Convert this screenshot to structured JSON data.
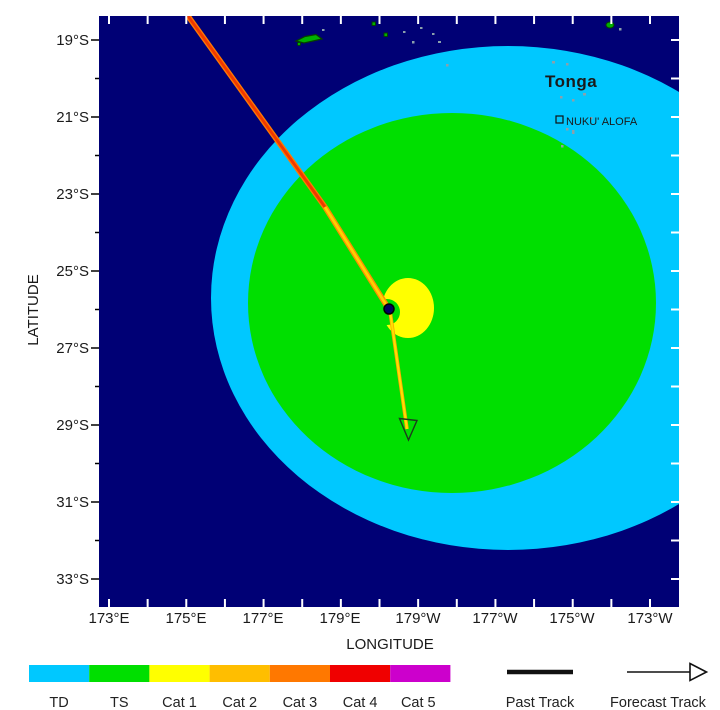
{
  "axes": {
    "x_label": "LONGITUDE",
    "y_label": "LATITUDE",
    "x_ticks": [
      "173°E",
      "175°E",
      "177°E",
      "179°E",
      "179°W",
      "177°W",
      "175°W",
      "173°W"
    ],
    "y_ticks": [
      "19°S",
      "21°S",
      "23°S",
      "25°S",
      "27°S",
      "29°S",
      "31°S",
      "33°S"
    ]
  },
  "labels": {
    "region": "Tonga",
    "city": "NUKU' ALOFA"
  },
  "legend": {
    "intensity_scale": [
      {
        "label": "TD",
        "color": "#00c8ff"
      },
      {
        "label": "TS",
        "color": "#00df00"
      },
      {
        "label": "Cat 1",
        "color": "#ffff00"
      },
      {
        "label": "Cat 2",
        "color": "#ffbe00"
      },
      {
        "label": "Cat 3",
        "color": "#ff7800"
      },
      {
        "label": "Cat 4",
        "color": "#f00000"
      },
      {
        "label": "Cat 5",
        "color": "#cc00cc"
      }
    ],
    "past_track_label": "Past Track",
    "forecast_track_label": "Forecast Track"
  },
  "map_colors": {
    "ocean": "#000075",
    "td_wind_zone": "#00c8ff",
    "ts_wind_zone": "#00df00",
    "cat1_wind_zone": "#ffff00",
    "past_track_early": "#f03800",
    "past_track_late": "#ffd000",
    "forecast_track": "#ffe000",
    "storm_marker": "#000060",
    "region_label_color": "#4b4b00",
    "city_label_color": "#111111"
  },
  "storm": {
    "current_position": {
      "lon": "179.7W",
      "lat": "26.0S"
    },
    "past_track_points": [
      {
        "lon": "175.0E",
        "lat": "18.4S"
      },
      {
        "lon": "178.6E",
        "lat": "23.3S"
      },
      {
        "lon": "179.7W",
        "lat": "26.0S"
      }
    ],
    "forecast_track_points": [
      {
        "lon": "179.7W",
        "lat": "26.0S"
      },
      {
        "lon": "179.2W",
        "lat": "29.4S"
      }
    ],
    "wind_zones": [
      {
        "name": "TD winds",
        "center_lon": "176.7W",
        "center_lat": "25.7S",
        "radius_lon_deg": 7.7,
        "radius_lat_deg": 6.5
      },
      {
        "name": "TS winds",
        "center_lon": "178.1W",
        "center_lat": "25.8S",
        "radius_lon_deg": 5.3,
        "radius_lat_deg": 4.9
      },
      {
        "name": "Cat 1 winds",
        "center_lon": "179.3W",
        "center_lat": "26.0S",
        "radius_lon_deg": 0.7,
        "radius_lat_deg": 0.8
      }
    ]
  }
}
